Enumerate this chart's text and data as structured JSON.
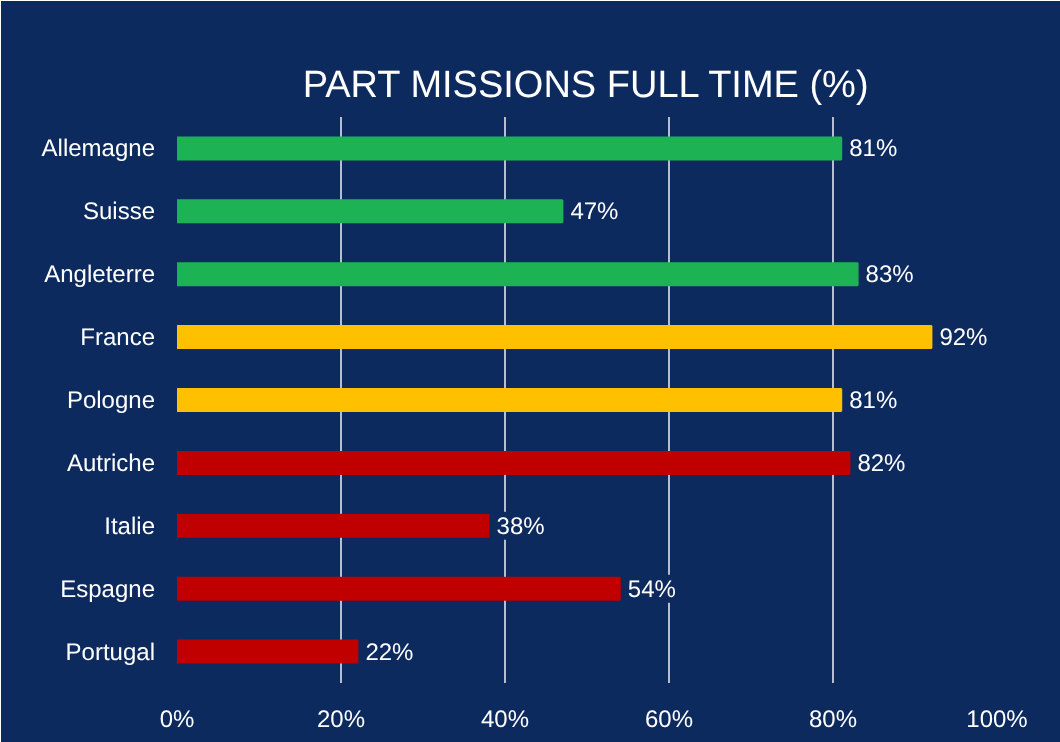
{
  "chart_data": {
    "type": "bar",
    "orientation": "horizontal",
    "title": "PART MISSIONS FULL TIME (%)",
    "categories": [
      "Allemagne",
      "Suisse",
      "Angleterre",
      "France",
      "Pologne",
      "Autriche",
      "Italie",
      "Espagne",
      "Portugal"
    ],
    "values": [
      81,
      47,
      83,
      92,
      81,
      82,
      38,
      54,
      22
    ],
    "colors": [
      "#1db254",
      "#1db254",
      "#1db254",
      "#ffc000",
      "#ffc000",
      "#c00000",
      "#c00000",
      "#c00000",
      "#c00000"
    ],
    "value_labels": [
      "81%",
      "47%",
      "83%",
      "92%",
      "81%",
      "82%",
      "38%",
      "54%",
      "22%"
    ],
    "xlim": [
      0,
      100
    ],
    "xticks": [
      {
        "value": 0,
        "label": "0%"
      },
      {
        "value": 20,
        "label": "20%"
      },
      {
        "value": 40,
        "label": "40%"
      },
      {
        "value": 60,
        "label": "60%"
      },
      {
        "value": 80,
        "label": "80%"
      },
      {
        "value": 100,
        "label": "100%"
      }
    ],
    "grid": "x"
  }
}
